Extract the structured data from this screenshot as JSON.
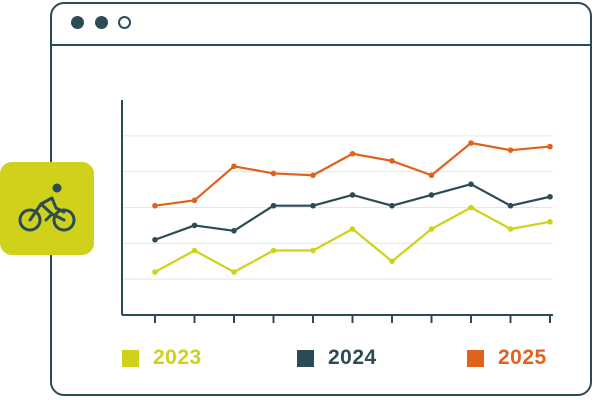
{
  "colors": {
    "frame": "#2c4c55",
    "badge": "#cfd11a",
    "grid": "#e6e6e6"
  },
  "icons": {
    "badge_icon": "bicycle-icon"
  },
  "chart_data": {
    "type": "line",
    "title": "",
    "xlabel": "",
    "ylabel": "",
    "x": [
      1,
      2,
      3,
      4,
      5,
      6,
      7,
      8,
      9,
      10,
      11
    ],
    "ylim": [
      0,
      6
    ],
    "grid": true,
    "legend": "bottom",
    "series": [
      {
        "name": "2023",
        "color": "#cfd11a",
        "values": [
          1.2,
          1.8,
          1.2,
          1.8,
          1.8,
          2.4,
          1.5,
          2.4,
          3.0,
          2.4,
          2.6
        ]
      },
      {
        "name": "2024",
        "color": "#2c4c55",
        "values": [
          2.1,
          2.5,
          2.35,
          3.05,
          3.05,
          3.35,
          3.05,
          3.35,
          3.65,
          3.05,
          3.3
        ]
      },
      {
        "name": "2025",
        "color": "#e0621c",
        "values": [
          3.05,
          3.2,
          4.15,
          3.95,
          3.9,
          4.5,
          4.3,
          3.9,
          4.8,
          4.6,
          4.7
        ]
      }
    ]
  }
}
